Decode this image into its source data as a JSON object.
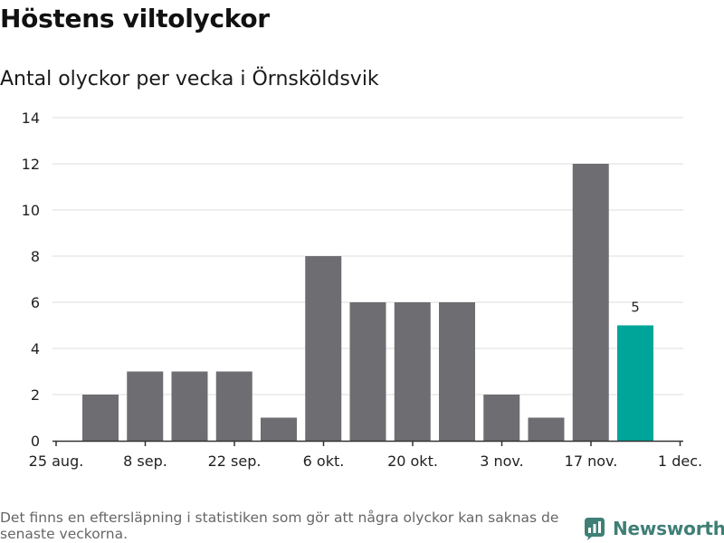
{
  "title": "Höstens viltolyckor",
  "subtitle": "Antal olyckor per vecka i Örnsköldsvik",
  "footnote": "Det finns en eftersläpning i statistiken som gör att några olyckor kan saknas de senaste veckorna.",
  "brand": {
    "name": "Newsworthy",
    "icon": "newsworthy-logo-icon"
  },
  "colors": {
    "bar": "#6e6d72",
    "highlight": "#00a599",
    "grid": "#dddddd",
    "axis": "#333333",
    "brand": "#3f7f76"
  },
  "chart_data": {
    "type": "bar",
    "title": "Höstens viltolyckor",
    "subtitle": "Antal olyckor per vecka i Örnsköldsvik",
    "xlabel": "",
    "ylabel": "",
    "ylim": [
      0,
      14
    ],
    "yticks": [
      0,
      2,
      4,
      6,
      8,
      10,
      12,
      14
    ],
    "x_tick_labels": [
      "25 aug.",
      "8 sep.",
      "22 sep.",
      "6 okt.",
      "20 okt.",
      "3 nov.",
      "17 nov.",
      "1 dec."
    ],
    "values": [
      2,
      3,
      3,
      3,
      1,
      8,
      6,
      6,
      6,
      2,
      1,
      12,
      5
    ],
    "highlight_index": 12,
    "highlight_label": "5",
    "grid": true,
    "legend": "none"
  }
}
